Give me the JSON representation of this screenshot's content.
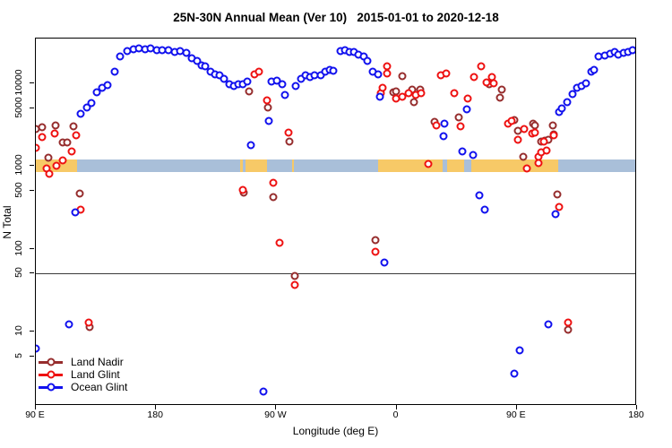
{
  "chart_data": {
    "type": "scatter",
    "title": "25N-30N Annual Mean (Ver 10)   2015-01-01 to 2020-12-18",
    "xlabel": "Longitude (deg E)",
    "ylabel": "N Total",
    "x_axis": {
      "note": "longitude increases eastward from 90E, wrapping through 180, 90W, 0, 90E to 180",
      "range": [
        90,
        540
      ],
      "ticks": [
        {
          "lon": 90,
          "label": "90 E"
        },
        {
          "lon": 180,
          "label": "180"
        },
        {
          "lon": 270,
          "label": "90 W"
        },
        {
          "lon": 360,
          "label": "0"
        },
        {
          "lon": 450,
          "label": "90 E"
        },
        {
          "lon": 540,
          "label": "180"
        }
      ]
    },
    "y_axis": {
      "scale": "log10",
      "range": [
        1.3,
        34000
      ],
      "ticks": [
        {
          "value": 5,
          "label": "5"
        },
        {
          "value": 10,
          "label": "10"
        },
        {
          "value": 50,
          "label": "50"
        },
        {
          "value": 100,
          "label": "100"
        },
        {
          "value": 500,
          "label": "500"
        },
        {
          "value": 1000,
          "label": "1000"
        },
        {
          "value": 5000,
          "label": "5000"
        },
        {
          "value": 10000,
          "label": "10000"
        }
      ]
    },
    "reference_line_value": 50,
    "map_band": {
      "center_value": 1000,
      "land_color": "#F7C967",
      "water_color": "#A9BFD9",
      "segments": [
        {
          "from": 90,
          "to": 120.7,
          "type": "land"
        },
        {
          "from": 120.7,
          "to": 242.9,
          "type": "water"
        },
        {
          "from": 242.9,
          "to": 244.9,
          "type": "land"
        },
        {
          "from": 244.9,
          "to": 246.9,
          "type": "water"
        },
        {
          "from": 246.9,
          "to": 262.9,
          "type": "land"
        },
        {
          "from": 262.9,
          "to": 281.6,
          "type": "water"
        },
        {
          "from": 281.6,
          "to": 283.0,
          "type": "land"
        },
        {
          "from": 283.0,
          "to": 346.4,
          "type": "water"
        },
        {
          "from": 346.4,
          "to": 394.5,
          "type": "land"
        },
        {
          "from": 394.5,
          "to": 397.8,
          "type": "water"
        },
        {
          "from": 397.8,
          "to": 410.5,
          "type": "land"
        },
        {
          "from": 410.5,
          "to": 415.8,
          "type": "water"
        },
        {
          "from": 415.8,
          "to": 481.2,
          "type": "land"
        },
        {
          "from": 481.2,
          "to": 540,
          "type": "water"
        }
      ]
    },
    "series": [
      {
        "name": "Land Nadir",
        "color": "#962D2D",
        "points": [
          [
            90,
            2780
          ],
          [
            94.7,
            2930
          ],
          [
            99.3,
            1260
          ],
          [
            104.7,
            3080
          ],
          [
            110,
            1900
          ],
          [
            113.4,
            1900
          ],
          [
            118,
            3000
          ],
          [
            122.7,
            465
          ],
          [
            130.1,
            11.3
          ],
          [
            245.6,
            473
          ],
          [
            249.6,
            7900
          ],
          [
            263.6,
            5050
          ],
          [
            267.6,
            417
          ],
          [
            279.6,
            1960
          ],
          [
            283.6,
            47
          ],
          [
            344.4,
            127
          ],
          [
            357.7,
            7750
          ],
          [
            359.7,
            7950
          ],
          [
            364.4,
            12100
          ],
          [
            371.7,
            8350
          ],
          [
            373.1,
            5870
          ],
          [
            377.7,
            8350
          ],
          [
            388.4,
            3390
          ],
          [
            406.4,
            3850
          ],
          [
            429.1,
            9650
          ],
          [
            437.1,
            6640
          ],
          [
            438.4,
            8350
          ],
          [
            448.4,
            3560
          ],
          [
            451.1,
            2650
          ],
          [
            455.1,
            1290
          ],
          [
            462.4,
            3230
          ],
          [
            463.8,
            3080
          ],
          [
            468.4,
            1970
          ],
          [
            471.1,
            2020
          ],
          [
            473.8,
            2060
          ],
          [
            477.1,
            3080
          ],
          [
            477.8,
            2400
          ],
          [
            480.5,
            452
          ],
          [
            488.6,
            10.5
          ]
        ]
      },
      {
        "name": "Land Glint",
        "color": "#EE1111",
        "points": [
          [
            90,
            1630
          ],
          [
            94.7,
            2230
          ],
          [
            98,
            940
          ],
          [
            100,
            810
          ],
          [
            104,
            2480
          ],
          [
            105.4,
            1010
          ],
          [
            110,
            1150
          ],
          [
            116.7,
            1490
          ],
          [
            120,
            2330
          ],
          [
            123.4,
            295
          ],
          [
            129.4,
            12.8
          ],
          [
            244.9,
            510
          ],
          [
            253.6,
            12700
          ],
          [
            257,
            13700
          ],
          [
            263,
            6200
          ],
          [
            267.6,
            625
          ],
          [
            272.3,
            118
          ],
          [
            279,
            2520
          ],
          [
            283.6,
            36
          ],
          [
            344.4,
            91
          ],
          [
            348.4,
            7560
          ],
          [
            349.7,
            8760
          ],
          [
            353.1,
            15900
          ],
          [
            353.2,
            13100
          ],
          [
            359.7,
            6480
          ],
          [
            364.4,
            6800
          ],
          [
            369.1,
            7560
          ],
          [
            374.4,
            7150
          ],
          [
            378.4,
            7560
          ],
          [
            383.8,
            1060
          ],
          [
            389.8,
            3080
          ],
          [
            393.1,
            12400
          ],
          [
            397.1,
            13100
          ],
          [
            403.1,
            7560
          ],
          [
            407.8,
            3000
          ],
          [
            413.1,
            6480
          ],
          [
            417.8,
            11800
          ],
          [
            423.1,
            15900
          ],
          [
            427.1,
            10200
          ],
          [
            431.1,
            11800
          ],
          [
            432.4,
            9900
          ],
          [
            443.1,
            3230
          ],
          [
            446.4,
            3470
          ],
          [
            451.1,
            2060
          ],
          [
            455.8,
            2800
          ],
          [
            457.8,
            935
          ],
          [
            461.8,
            2460
          ],
          [
            463.8,
            2520
          ],
          [
            466.4,
            1080
          ],
          [
            466.5,
            1290
          ],
          [
            468.4,
            1440
          ],
          [
            470.4,
            1970
          ],
          [
            472.5,
            1520
          ],
          [
            477.8,
            2330
          ],
          [
            481.9,
            318
          ],
          [
            488.6,
            12.8
          ]
        ]
      },
      {
        "name": "Ocean Glint",
        "color": "#1111EE",
        "points": [
          [
            90,
            6.2
          ],
          [
            114.7,
            12.2
          ],
          [
            119.4,
            275
          ],
          [
            123.4,
            4250
          ],
          [
            128.1,
            5050
          ],
          [
            131.4,
            5730
          ],
          [
            135.4,
            7750
          ],
          [
            139.4,
            8760
          ],
          [
            143.4,
            9420
          ],
          [
            148.8,
            13700
          ],
          [
            152.8,
            21000
          ],
          [
            158.1,
            24300
          ],
          [
            162.8,
            25600
          ],
          [
            167.4,
            26200
          ],
          [
            171.5,
            25600
          ],
          [
            176.1,
            26200
          ],
          [
            180.8,
            25000
          ],
          [
            184.8,
            25000
          ],
          [
            189.5,
            25000
          ],
          [
            194.2,
            23700
          ],
          [
            198.2,
            24300
          ],
          [
            202.8,
            23100
          ],
          [
            206.8,
            19900
          ],
          [
            210.9,
            18400
          ],
          [
            214.2,
            16300
          ],
          [
            216.9,
            15900
          ],
          [
            220.9,
            13700
          ],
          [
            224.2,
            12700
          ],
          [
            227.6,
            12400
          ],
          [
            230.9,
            11200
          ],
          [
            234.9,
            9650
          ],
          [
            238.2,
            9180
          ],
          [
            241.6,
            9650
          ],
          [
            244.9,
            9650
          ],
          [
            248.3,
            10400
          ],
          [
            250.9,
            1780
          ],
          [
            260.3,
            1.9
          ],
          [
            264.3,
            3470
          ],
          [
            266.3,
            10400
          ],
          [
            270.3,
            10700
          ],
          [
            274.3,
            9650
          ],
          [
            276.3,
            7150
          ],
          [
            284.3,
            9180
          ],
          [
            288.3,
            11200
          ],
          [
            291.7,
            12400
          ],
          [
            295,
            11800
          ],
          [
            298.4,
            12400
          ],
          [
            303,
            12400
          ],
          [
            306.4,
            13700
          ],
          [
            309.7,
            14500
          ],
          [
            312.4,
            14100
          ],
          [
            317.7,
            24300
          ],
          [
            321.7,
            25000
          ],
          [
            324.4,
            23700
          ],
          [
            328.4,
            23700
          ],
          [
            331.7,
            22000
          ],
          [
            335.7,
            20900
          ],
          [
            338.4,
            18400
          ],
          [
            342.4,
            13700
          ],
          [
            346.4,
            12700
          ],
          [
            347.7,
            6800
          ],
          [
            351.1,
            68
          ],
          [
            395.1,
            2280
          ],
          [
            395.8,
            3230
          ],
          [
            409.2,
            1490
          ],
          [
            412.5,
            4820
          ],
          [
            417.2,
            1350
          ],
          [
            421.8,
            440
          ],
          [
            425.8,
            295
          ],
          [
            447.9,
            3.1
          ],
          [
            451.9,
            5.9
          ],
          [
            473.9,
            12.2
          ],
          [
            479.3,
            260
          ],
          [
            481.9,
            4470
          ],
          [
            483.9,
            4950
          ],
          [
            487.9,
            5870
          ],
          [
            491.9,
            7350
          ],
          [
            495.3,
            8760
          ],
          [
            498.6,
            9180
          ],
          [
            502,
            9900
          ],
          [
            506,
            13700
          ],
          [
            508,
            14500
          ],
          [
            511.3,
            21000
          ],
          [
            516,
            21500
          ],
          [
            520,
            22600
          ],
          [
            523.3,
            23700
          ],
          [
            526,
            22000
          ],
          [
            530,
            23100
          ],
          [
            533.3,
            23700
          ],
          [
            536.7,
            25000
          ]
        ]
      }
    ],
    "legend": {
      "position": "bottom-left-inside",
      "entries": [
        "Land Nadir",
        "Land Glint",
        "Ocean Glint"
      ]
    }
  }
}
